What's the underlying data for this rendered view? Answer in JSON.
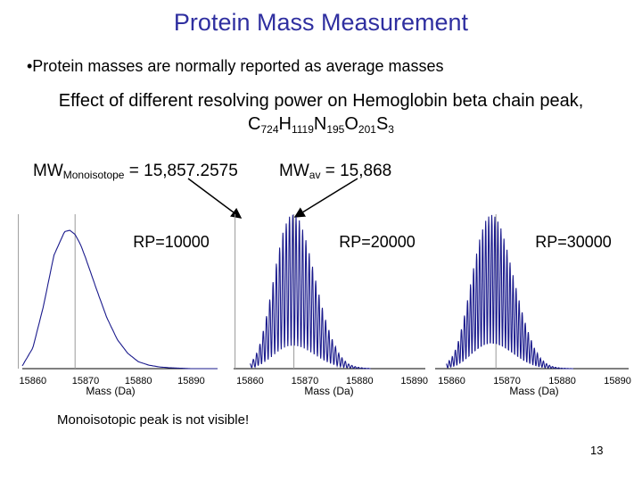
{
  "slide": {
    "title": "Protein Mass Measurement",
    "bullet": "•Protein masses are normally reported as average masses",
    "effect_line": "Effect of different resolving power on Hemoglobin beta chain peak,",
    "formula": {
      "parts": [
        {
          "el": "C",
          "n": "724"
        },
        {
          "el": "H",
          "n": "1119"
        },
        {
          "el": "N",
          "n": "195"
        },
        {
          "el": "O",
          "n": "201"
        },
        {
          "el": "S",
          "n": "3"
        }
      ]
    },
    "mw_mono": {
      "main": "MW",
      "sub": "Monoisotope",
      "value": " = 15,857.2575"
    },
    "mw_av": {
      "main": "MW",
      "sub": "av",
      "value": " = 15,868"
    },
    "note": "Monoisotopic peak is not visible!",
    "page_number": "13"
  },
  "chart_data": [
    {
      "type": "line",
      "title": "RP=10000",
      "xlabel": "Mass (Da)",
      "xticks": [
        15860,
        15870,
        15880,
        15890
      ],
      "xlim": [
        15858,
        15895
      ],
      "reference_lines": [
        15857.2575,
        15868
      ],
      "series": [
        {
          "x": [
            15858,
            15860,
            15862,
            15864,
            15866,
            15867,
            15868,
            15869,
            15870,
            15872,
            15874,
            15876,
            15878,
            15880,
            15882,
            15884,
            15886,
            15888,
            15890,
            15894
          ],
          "y": [
            0.02,
            0.15,
            0.45,
            0.82,
            0.99,
            1.0,
            0.97,
            0.9,
            0.8,
            0.58,
            0.37,
            0.21,
            0.11,
            0.05,
            0.025,
            0.012,
            0.006,
            0.003,
            0.0,
            0.0
          ]
        }
      ]
    },
    {
      "type": "line",
      "title": "RP=20000",
      "xlabel": "Mass (Da)",
      "xticks": [
        15860,
        15870,
        15880,
        15890
      ],
      "xlim": [
        15857,
        15892
      ],
      "reference_lines": [
        15857.2575,
        15868
      ],
      "series": [
        {
          "x": [
            15860,
            15861,
            15862,
            15863,
            15864,
            15865,
            15866,
            15867,
            15868,
            15869,
            15870,
            15871,
            15872,
            15873,
            15874,
            15875,
            15876,
            15877,
            15878,
            15879,
            15880,
            15881,
            15882
          ],
          "y": [
            0.03,
            0.08,
            0.18,
            0.34,
            0.52,
            0.72,
            0.88,
            0.98,
            1.0,
            0.96,
            0.86,
            0.72,
            0.57,
            0.42,
            0.29,
            0.19,
            0.11,
            0.06,
            0.03,
            0.015,
            0.007,
            0.003,
            0.001
          ]
        }
      ]
    },
    {
      "type": "line",
      "title": "RP=30000",
      "xlabel": "Mass (Da)",
      "xticks": [
        15860,
        15870,
        15880,
        15890
      ],
      "xlim": [
        15857,
        15892
      ],
      "reference_lines": [
        15868
      ],
      "series": [
        {
          "x": [
            15859,
            15860,
            15861,
            15862,
            15863,
            15864,
            15865,
            15866,
            15867,
            15868,
            15869,
            15870,
            15871,
            15872,
            15873,
            15874,
            15875,
            15876,
            15877,
            15878,
            15879,
            15880,
            15881,
            15882
          ],
          "y": [
            0.03,
            0.07,
            0.15,
            0.29,
            0.47,
            0.66,
            0.83,
            0.95,
            1.0,
            0.98,
            0.9,
            0.77,
            0.62,
            0.47,
            0.33,
            0.22,
            0.13,
            0.07,
            0.035,
            0.016,
            0.007,
            0.003,
            0.001,
            0.0
          ]
        }
      ]
    }
  ]
}
